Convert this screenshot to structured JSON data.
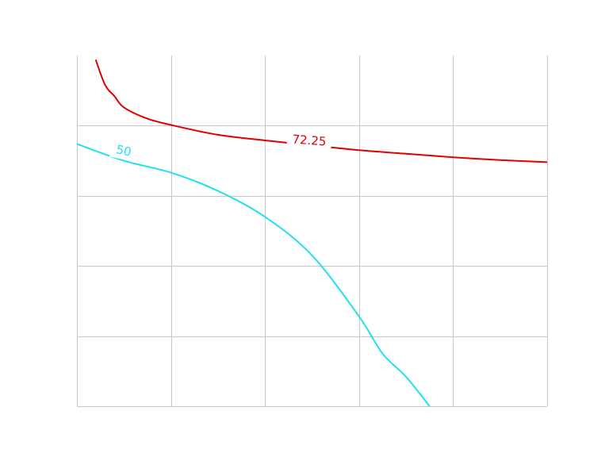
{
  "chart_data": {
    "type": "line",
    "title": "",
    "xlabel": "",
    "ylabel": "",
    "grid": true,
    "grid_color": "#c8c8c8",
    "background": "#ffffff",
    "series": [
      {
        "name": "",
        "label": "72.25",
        "color": "#e00000",
        "x": [
          0.2,
          0.3,
          0.4,
          0.5,
          0.75,
          1.0,
          1.5,
          2.0,
          2.5,
          3.0,
          3.5,
          4.0,
          4.5,
          5.0
        ],
        "y": [
          4.94,
          4.58,
          4.42,
          4.26,
          4.1,
          4.01,
          3.87,
          3.79,
          3.72,
          3.65,
          3.6,
          3.55,
          3.51,
          3.48
        ]
      },
      {
        "name": "",
        "label": "50",
        "color": "#1ee0ee",
        "x": [
          0.0,
          0.5,
          1.0,
          1.5,
          2.0,
          2.5,
          3.0,
          3.25,
          3.5,
          3.75
        ],
        "y": [
          3.74,
          3.5,
          3.33,
          3.07,
          2.7,
          2.15,
          1.28,
          0.75,
          0.42,
          0.0
        ]
      }
    ],
    "xlim": [
      0,
      5
    ],
    "ylim": [
      0,
      5
    ]
  }
}
